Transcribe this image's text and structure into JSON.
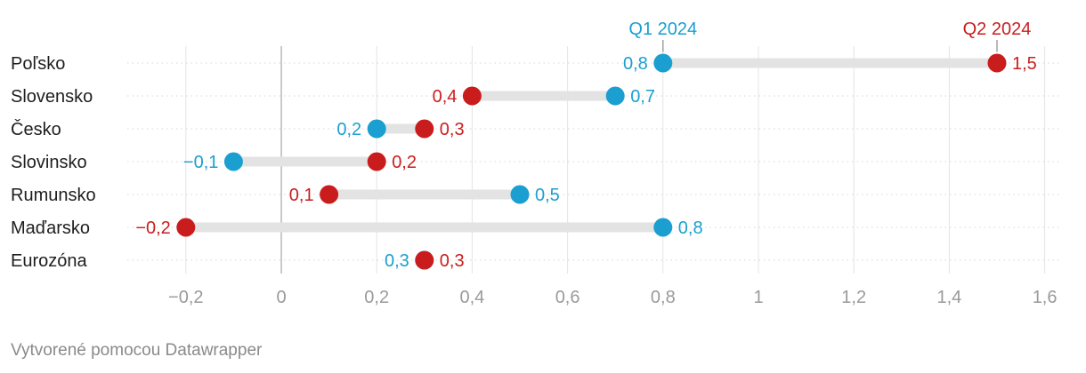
{
  "chart_data": {
    "type": "dot-range",
    "series": [
      {
        "name": "Q1 2024",
        "color": "#1a9fd0"
      },
      {
        "name": "Q2 2024",
        "color": "#c91d1d"
      }
    ],
    "categories": [
      "Poľsko",
      "Slovensko",
      "Česko",
      "Slovinsko",
      "Rumunsko",
      "Maďarsko",
      "Eurozóna"
    ],
    "rows": [
      {
        "label": "Poľsko",
        "q1": 0.8,
        "q2": 1.5,
        "q1_label": "0,8",
        "q2_label": "1,5"
      },
      {
        "label": "Slovensko",
        "q1": 0.7,
        "q2": 0.4,
        "q1_label": "0,7",
        "q2_label": "0,4"
      },
      {
        "label": "Česko",
        "q1": 0.2,
        "q2": 0.3,
        "q1_label": "0,2",
        "q2_label": "0,3"
      },
      {
        "label": "Slovinsko",
        "q1": -0.1,
        "q2": 0.2,
        "q1_label": "−0,1",
        "q2_label": "0,2"
      },
      {
        "label": "Rumunsko",
        "q1": 0.5,
        "q2": 0.1,
        "q1_label": "0,5",
        "q2_label": "0,1"
      },
      {
        "label": "Maďarsko",
        "q1": 0.8,
        "q2": -0.2,
        "q1_label": "0,8",
        "q2_label": "−0,2"
      },
      {
        "label": "Eurozóna",
        "q1": 0.3,
        "q2": 0.3,
        "q1_label": "0,3",
        "q2_label": "0,3"
      }
    ],
    "xlim": [
      -0.32,
      1.62
    ],
    "xticks": [
      {
        "value": -0.2,
        "label": "−0,2"
      },
      {
        "value": 0,
        "label": "0"
      },
      {
        "value": 0.2,
        "label": "0,2"
      },
      {
        "value": 0.4,
        "label": "0,4"
      },
      {
        "value": 0.6,
        "label": "0,6"
      },
      {
        "value": 0.8,
        "label": "0,8"
      },
      {
        "value": 1,
        "label": "1"
      },
      {
        "value": 1.2,
        "label": "1,2"
      },
      {
        "value": 1.4,
        "label": "1,4"
      },
      {
        "value": 1.6,
        "label": "1,6"
      }
    ],
    "annotations": [
      {
        "text": "Q1 2024",
        "series": "Q1 2024",
        "category": "Poľsko"
      },
      {
        "text": "Q2 2024",
        "series": "Q2 2024",
        "category": "Poľsko"
      }
    ]
  },
  "footer": {
    "credit": "Vytvorené pomocou Datawrapper"
  }
}
